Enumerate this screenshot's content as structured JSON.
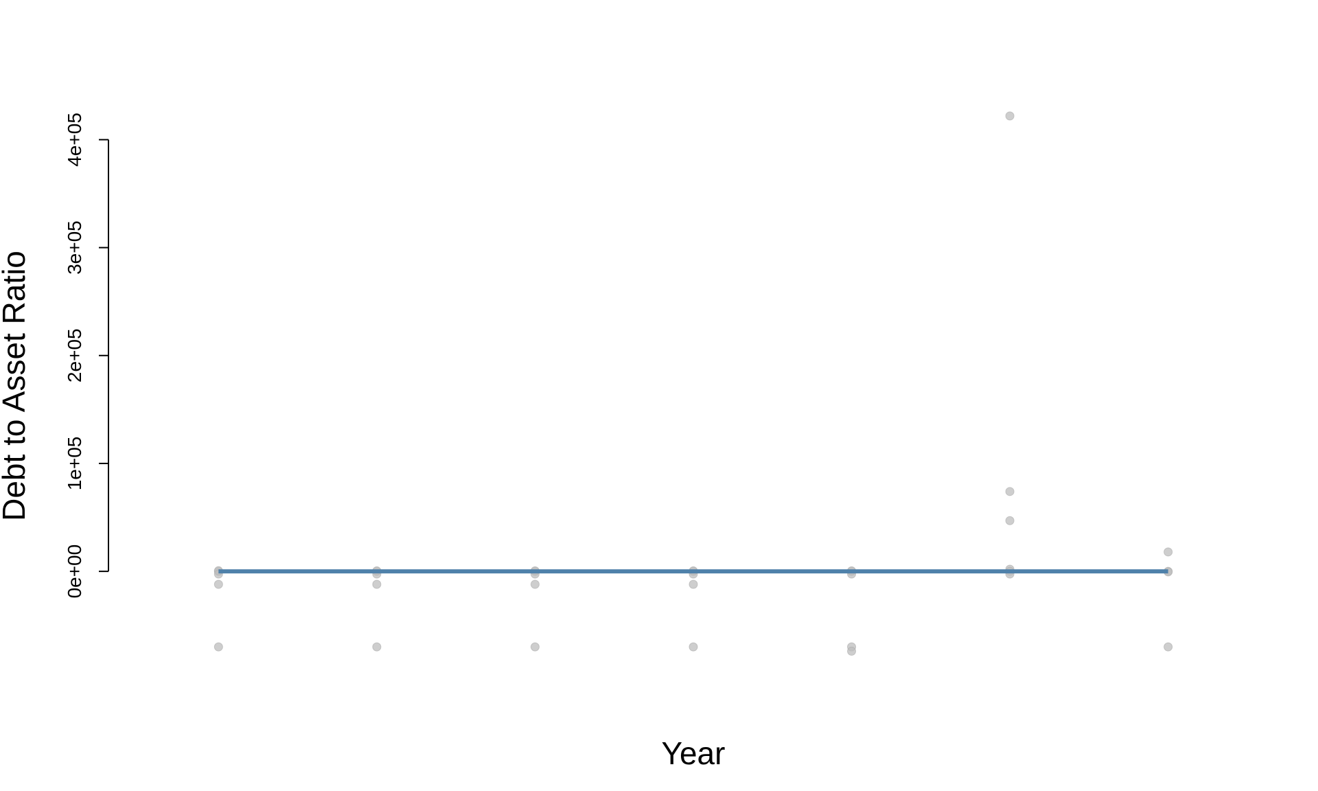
{
  "chart_data": {
    "type": "scatter",
    "title": "",
    "xlabel": "Year",
    "ylabel": "Debt to Asset Ratio",
    "x_ticks_shown": false,
    "y_ticks": [
      0,
      100000,
      200000,
      300000,
      400000
    ],
    "y_tick_labels": [
      "0e+00",
      "1e+05",
      "2e+05",
      "3e+05",
      "4e+05"
    ],
    "ylim": [
      -75000,
      420000
    ],
    "xlim": [
      0.4,
      7.6
    ],
    "grid": false,
    "legend": "none",
    "point_color": "#bebebe",
    "line_color": "#4f81aa",
    "x_positions": [
      1,
      2,
      3,
      4,
      5,
      6,
      7
    ],
    "points": [
      {
        "x": 1,
        "y": 0
      },
      {
        "x": 1,
        "y": 600
      },
      {
        "x": 1,
        "y": -2500
      },
      {
        "x": 1,
        "y": -12000
      },
      {
        "x": 1,
        "y": -70000
      },
      {
        "x": 2,
        "y": 0
      },
      {
        "x": 2,
        "y": 500
      },
      {
        "x": 2,
        "y": -2500
      },
      {
        "x": 2,
        "y": -12000
      },
      {
        "x": 2,
        "y": -70000
      },
      {
        "x": 3,
        "y": 0
      },
      {
        "x": 3,
        "y": 500
      },
      {
        "x": 3,
        "y": -2500
      },
      {
        "x": 3,
        "y": -12000
      },
      {
        "x": 3,
        "y": -70000
      },
      {
        "x": 4,
        "y": 0
      },
      {
        "x": 4,
        "y": 500
      },
      {
        "x": 4,
        "y": -2500
      },
      {
        "x": 4,
        "y": -12000
      },
      {
        "x": 4,
        "y": -70000
      },
      {
        "x": 5,
        "y": 0
      },
      {
        "x": 5,
        "y": 500
      },
      {
        "x": 5,
        "y": -2500
      },
      {
        "x": 5,
        "y": -70000
      },
      {
        "x": 5,
        "y": -74000
      },
      {
        "x": 6,
        "y": 422000
      },
      {
        "x": 6,
        "y": 74000
      },
      {
        "x": 6,
        "y": 47000
      },
      {
        "x": 6,
        "y": 2000
      },
      {
        "x": 6,
        "y": 0
      },
      {
        "x": 6,
        "y": -2500
      },
      {
        "x": 7,
        "y": 18000
      },
      {
        "x": 7,
        "y": 0
      },
      {
        "x": 7,
        "y": -500
      },
      {
        "x": 7,
        "y": -70000
      }
    ],
    "line": {
      "x": [
        1,
        7
      ],
      "y": [
        0,
        0
      ]
    }
  }
}
